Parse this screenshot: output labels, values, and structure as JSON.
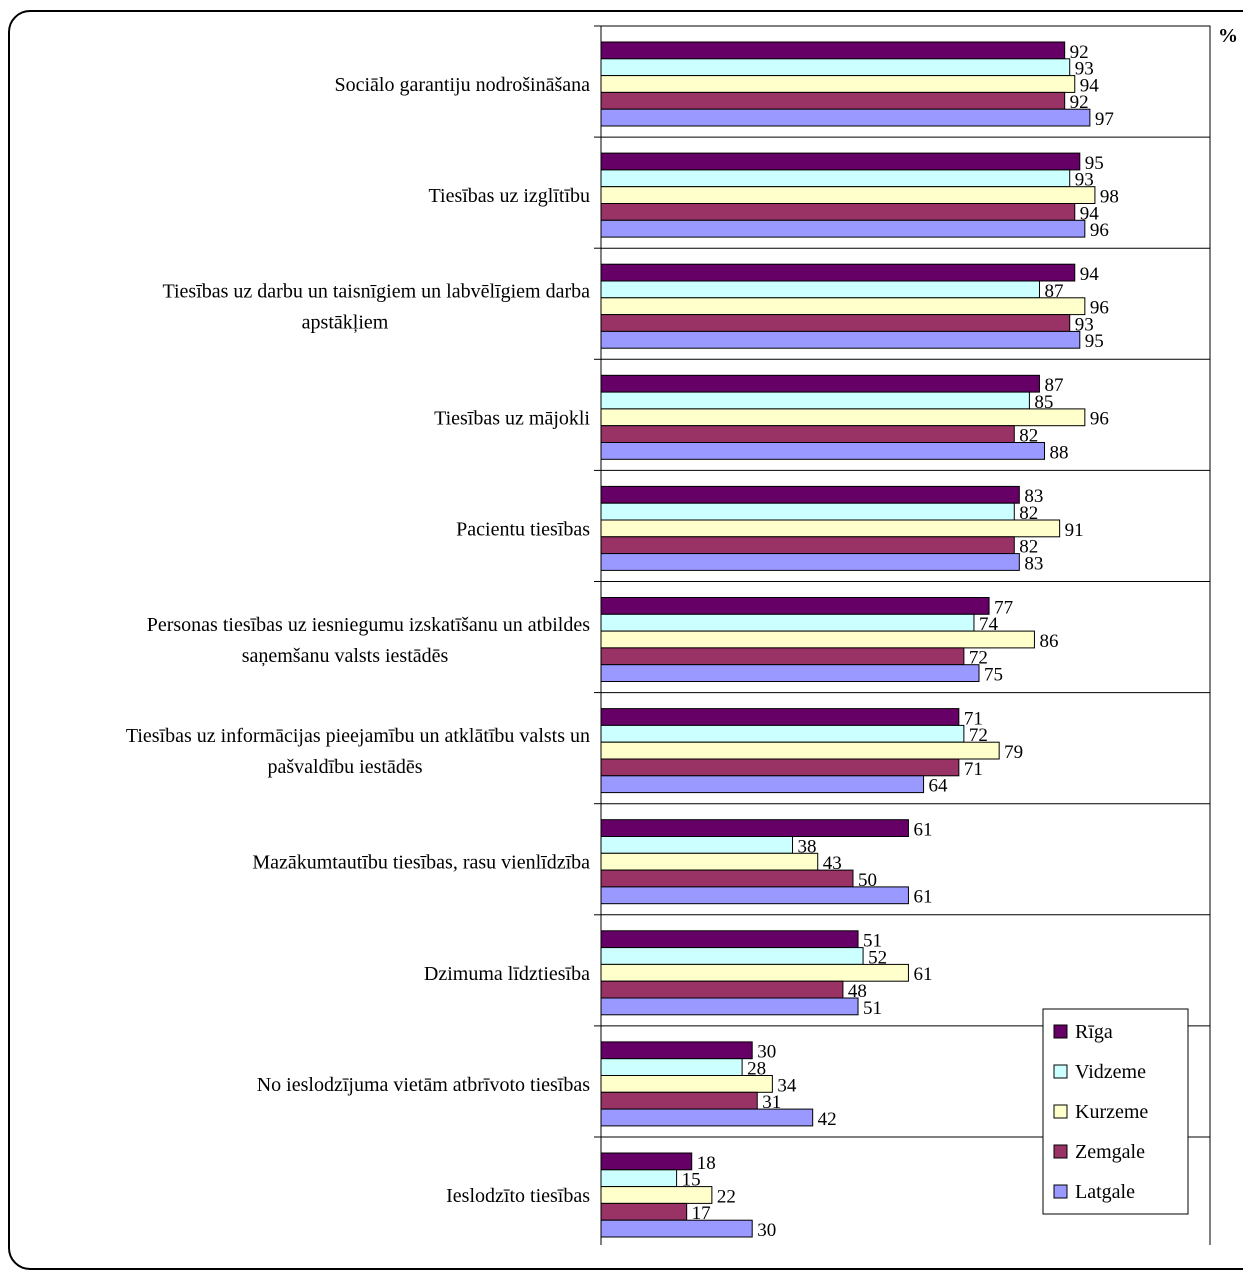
{
  "chart_data": {
    "type": "bar",
    "orientation": "horizontal",
    "unit": "%",
    "categories": [
      [
        "Sociālo garantiju nodrošināšana"
      ],
      [
        "Tiesības uz izglītību"
      ],
      [
        "Tiesības uz darbu un taisnīgiem un labvēlīgiem darba",
        "apstākļiem"
      ],
      [
        "Tiesības uz mājokli"
      ],
      [
        "Pacientu tiesības"
      ],
      [
        "Personas tiesības uz iesniegumu izskatīšanu un atbildes",
        "saņemšanu valsts iestādēs"
      ],
      [
        "Tiesības uz informācijas pieejamību un atklātību valsts un",
        "pašvaldību iestādēs"
      ],
      [
        "Mazākumtautību tiesības, rasu vienlīdzība"
      ],
      [
        "Dzimuma līdztiesība"
      ],
      [
        "No ieslodzījuma vietām atbrīvoto tiesības"
      ],
      [
        "Ieslodzīto tiesības"
      ]
    ],
    "series": [
      {
        "name": "Rīga",
        "color": "#660066",
        "values": [
          92,
          95,
          94,
          87,
          83,
          77,
          71,
          61,
          51,
          30,
          18
        ]
      },
      {
        "name": "Vidzeme",
        "color": "#ccffff",
        "values": [
          93,
          93,
          87,
          85,
          82,
          74,
          72,
          38,
          52,
          28,
          15
        ]
      },
      {
        "name": "Kurzeme",
        "color": "#ffffcc",
        "values": [
          94,
          98,
          96,
          96,
          91,
          86,
          79,
          43,
          61,
          34,
          22
        ]
      },
      {
        "name": "Zemgale",
        "color": "#993366",
        "values": [
          92,
          94,
          93,
          82,
          82,
          72,
          71,
          50,
          48,
          31,
          17
        ]
      },
      {
        "name": "Latgale",
        "color": "#9999ff",
        "values": [
          97,
          96,
          95,
          88,
          83,
          75,
          64,
          61,
          51,
          42,
          30
        ]
      }
    ],
    "xlim": [
      0,
      120
    ],
    "grid": "horizontal separators between categories",
    "legend_position": "bottom-right"
  }
}
